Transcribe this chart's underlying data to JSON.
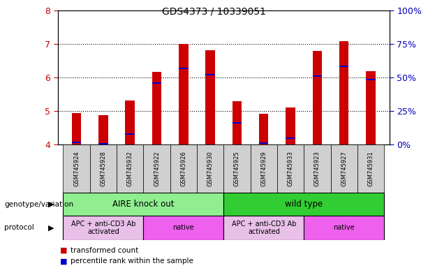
{
  "title": "GDS4373 / 10339051",
  "samples": [
    "GSM745924",
    "GSM745928",
    "GSM745932",
    "GSM745922",
    "GSM745926",
    "GSM745930",
    "GSM745925",
    "GSM745929",
    "GSM745933",
    "GSM745923",
    "GSM745927",
    "GSM745931"
  ],
  "red_values": [
    4.95,
    4.88,
    5.32,
    6.18,
    7.0,
    6.82,
    5.3,
    4.92,
    5.12,
    6.8,
    7.1,
    6.2
  ],
  "blue_values": [
    4.07,
    4.03,
    4.32,
    5.85,
    6.28,
    6.1,
    4.65,
    4.05,
    4.2,
    6.05,
    6.35,
    5.95
  ],
  "y_min": 4.0,
  "y_max": 8.0,
  "y_ticks_left": [
    4,
    5,
    6,
    7,
    8
  ],
  "y_ticks_right": [
    0,
    25,
    50,
    75,
    100
  ],
  "y_right_labels": [
    "0%",
    "25%",
    "50%",
    "75%",
    "100%"
  ],
  "genotype_groups": [
    {
      "label": "AIRE knock out",
      "start": 0,
      "end": 6,
      "color": "#90EE90"
    },
    {
      "label": "wild type",
      "start": 6,
      "end": 12,
      "color": "#32CD32"
    }
  ],
  "protocol_groups": [
    {
      "label": "APC + anti-CD3 Ab\nactivated",
      "start": 0,
      "end": 3,
      "color": "#E8C0E8"
    },
    {
      "label": "native",
      "start": 3,
      "end": 6,
      "color": "#EE60EE"
    },
    {
      "label": "APC + anti-CD3 Ab\nactivated",
      "start": 6,
      "end": 9,
      "color": "#E8C0E8"
    },
    {
      "label": "native",
      "start": 9,
      "end": 12,
      "color": "#EE60EE"
    }
  ],
  "bar_width": 0.35,
  "red_color": "#CC0000",
  "blue_color": "#0000CC",
  "left_label_color": "#CC0000",
  "right_label_color": "#0000BB",
  "grid_color": "black",
  "bg_color": "#ffffff",
  "plot_bg_color": "#ffffff"
}
